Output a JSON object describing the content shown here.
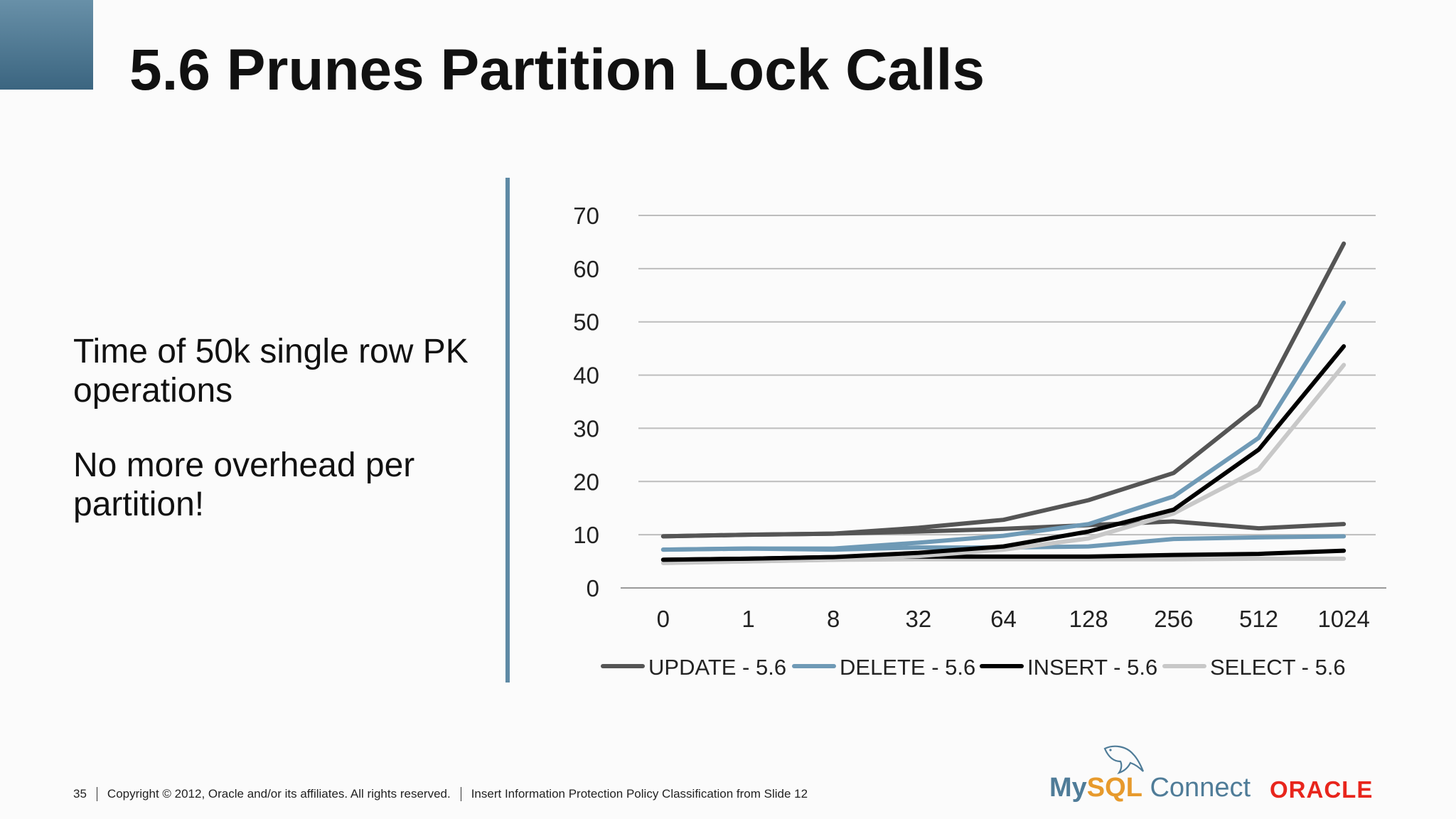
{
  "slide": {
    "title": "5.6 Prunes Partition Lock Calls",
    "body": [
      "Time of 50k single row PK operations",
      "No more overhead per partition!"
    ],
    "footer": {
      "page_number": "35",
      "copyright": "Copyright © 2012, Oracle and/or its affiliates. All rights reserved.",
      "classification": "Insert Information Protection Policy Classification from Slide 12"
    },
    "logos": {
      "mysql_my": "My",
      "mysql_sql": "SQL",
      "mysql_connect": "Connect",
      "oracle": "ORACLE"
    },
    "colors": {
      "accent": "#5f8aa5",
      "oracle_red": "#e8251c"
    }
  },
  "chart_data": {
    "type": "line",
    "title": "",
    "xlabel": "",
    "ylabel": "",
    "categories": [
      "0",
      "1",
      "8",
      "32",
      "64",
      "128",
      "256",
      "512",
      "1024"
    ],
    "ylim": [
      0,
      70
    ],
    "yticks": [
      0,
      10,
      20,
      30,
      40,
      50,
      60,
      70
    ],
    "grid": true,
    "legend_position": "bottom",
    "series": [
      {
        "name": "UPDATE - 5.6",
        "color": "#555555",
        "values": [
          9.7,
          10.0,
          10.2,
          11.3,
          12.8,
          16.5,
          21.6,
          34.3,
          64.7
        ]
      },
      {
        "name": "DELETE - 5.6",
        "color": "#6f9ab6",
        "values": [
          7.2,
          7.4,
          7.4,
          8.5,
          9.8,
          12.0,
          17.2,
          28.2,
          53.6
        ]
      },
      {
        "name": "INSERT - 5.6",
        "color": "#000000",
        "values": [
          5.3,
          5.5,
          5.8,
          6.6,
          7.8,
          10.6,
          14.7,
          26.0,
          45.4
        ]
      },
      {
        "name": "SELECT - 5.6",
        "color": "#c8c8c8",
        "values": [
          4.7,
          5.0,
          5.3,
          6.0,
          7.2,
          9.3,
          14.0,
          22.3,
          41.9
        ]
      },
      {
        "name": "",
        "color": "#555555",
        "values": [
          9.7,
          10.0,
          10.2,
          10.6,
          11.1,
          11.8,
          12.5,
          11.2,
          12.0
        ]
      },
      {
        "name": "",
        "color": "#6f9ab6",
        "values": [
          7.2,
          7.4,
          7.2,
          7.6,
          7.6,
          7.8,
          9.2,
          9.5,
          9.7
        ]
      },
      {
        "name": "",
        "color": "#000000",
        "values": [
          5.3,
          5.5,
          5.8,
          5.9,
          5.9,
          5.9,
          6.2,
          6.4,
          7.0
        ]
      },
      {
        "name": "",
        "color": "#c8c8c8",
        "values": [
          4.7,
          5.0,
          5.3,
          5.4,
          5.4,
          5.4,
          5.4,
          5.5,
          5.5
        ]
      }
    ]
  }
}
